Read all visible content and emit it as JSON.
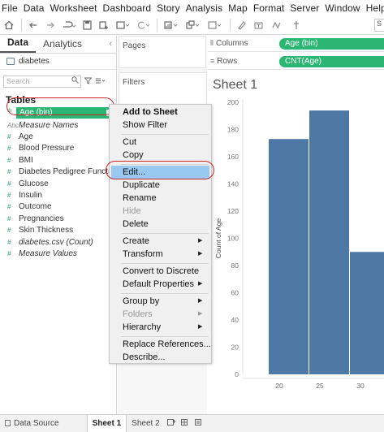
{
  "menubar": [
    "File",
    "Data",
    "Worksheet",
    "Dashboard",
    "Story",
    "Analysis",
    "Map",
    "Format",
    "Server",
    "Window",
    "Help"
  ],
  "toolbar": {
    "icons": [
      "home-icon",
      "back-icon",
      "forward-icon",
      "undo-icon",
      "save-icon",
      "new-data-source-icon",
      "pause-icon",
      "refresh-icon",
      "new-worksheet-icon",
      "swap-icon",
      "sort-icon",
      "highlight-icon",
      "label-icon",
      "fit-icon",
      "pin-icon"
    ],
    "search_letter": "S"
  },
  "datapane": {
    "tab_data": "Data",
    "tab_analytics": "Analytics",
    "collapse_glyph": "‹",
    "source": "diabetes",
    "search_placeholder": "Search",
    "tables_header": "Tables",
    "selected_field": "Age (bin)",
    "fields": [
      {
        "icon": "Abc",
        "label": "Measure Names",
        "italic": true,
        "dim": true
      },
      {
        "icon": "#",
        "label": "Age",
        "italic": false
      },
      {
        "icon": "#",
        "label": "Blood Pressure",
        "italic": false
      },
      {
        "icon": "#",
        "label": "BMI",
        "italic": false
      },
      {
        "icon": "#",
        "label": "Diabetes Pedigree Function",
        "italic": false
      },
      {
        "icon": "#",
        "label": "Glucose",
        "italic": false
      },
      {
        "icon": "#",
        "label": "Insulin",
        "italic": false
      },
      {
        "icon": "#",
        "label": "Outcome",
        "italic": false
      },
      {
        "icon": "#",
        "label": "Pregnancies",
        "italic": false
      },
      {
        "icon": "#",
        "label": "Skin Thickness",
        "italic": false
      },
      {
        "icon": "#",
        "label": "diabetes.csv (Count)",
        "italic": true
      },
      {
        "icon": "#",
        "label": "Measure Values",
        "italic": true
      }
    ]
  },
  "cards": {
    "pages": "Pages",
    "filters": "Filters"
  },
  "shelves": {
    "columns_label": "Columns",
    "columns_pill": "Age (bin)",
    "rows_label": "Rows",
    "rows_pill": "CNT(Age)"
  },
  "sheet": {
    "title": "Sheet 1"
  },
  "chart_data": {
    "type": "bar",
    "categories": [
      "20",
      "25",
      "30"
    ],
    "values": [
      173,
      194,
      90
    ],
    "ylabel": "Count of Age",
    "xlabel": "",
    "yticks": [
      0,
      20,
      40,
      60,
      80,
      100,
      120,
      140,
      160,
      180,
      200
    ],
    "ylim": [
      0,
      200
    ],
    "bar_color": "#4e79a7",
    "grid": false
  },
  "context_menu": {
    "items": [
      "Add to Sheet",
      "Show Filter",
      "Cut",
      "Copy",
      "Edit...",
      "Duplicate",
      "Rename",
      "Hide",
      "Delete",
      "Create",
      "Transform",
      "Convert to Discrete",
      "Default Properties",
      "Group by",
      "Folders",
      "Hierarchy",
      "Replace References...",
      "Describe..."
    ],
    "highlighted": "Edit...",
    "highlight_color": "#99c9f0"
  },
  "bottom": {
    "data_source": "Data Source",
    "sheet1": "Sheet 1",
    "sheet2": "Sheet 2"
  },
  "colors": {
    "pill": "#2bb673",
    "annotation": "#c9252b"
  }
}
